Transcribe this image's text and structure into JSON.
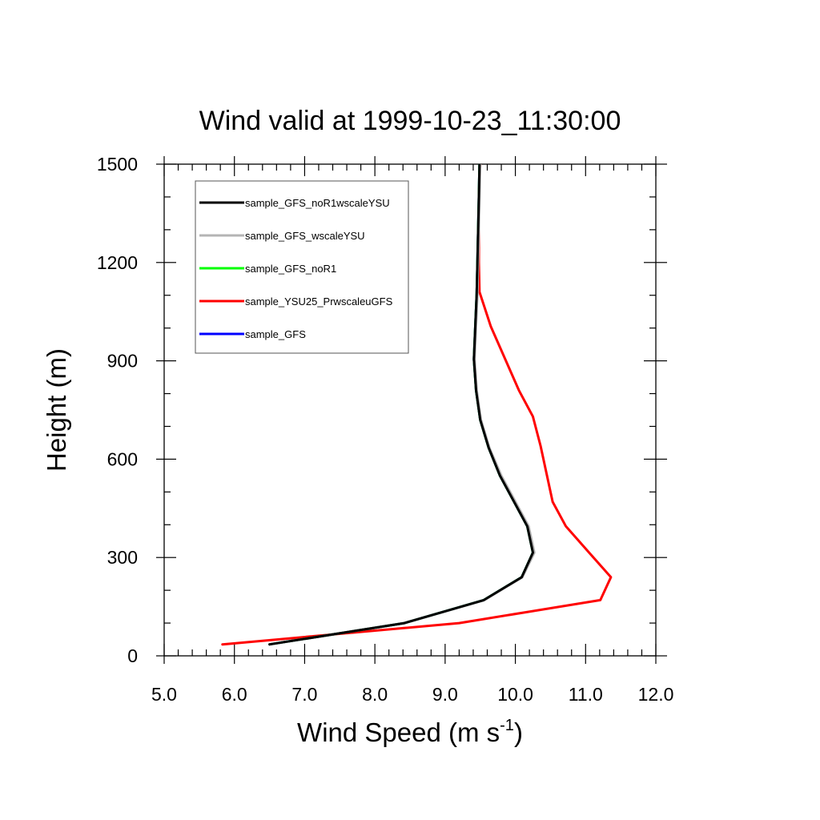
{
  "chart_data": {
    "type": "line",
    "title": "Wind valid at 1999-10-23_11:30:00",
    "xlabel": "Wind Speed (m s",
    "xlabel_superscript": "-1",
    "xlabel_suffix": ")",
    "ylabel": "Height (m)",
    "xlim": [
      5.0,
      12.0
    ],
    "ylim": [
      0,
      1500
    ],
    "xticks": [
      "5.0",
      "6.0",
      "7.0",
      "8.0",
      "9.0",
      "10.0",
      "11.0",
      "12.0"
    ],
    "yticks": [
      "0",
      "300",
      "600",
      "900",
      "1200",
      "1500"
    ],
    "grid": false,
    "legend_position": "top-left",
    "series": [
      {
        "name": "sample_GFS",
        "color": "#0000ff",
        "x": [
          6.5,
          8.42,
          9.55,
          10.09,
          10.25,
          10.17,
          9.78,
          9.62,
          9.5,
          9.44,
          9.41,
          9.43,
          9.45,
          9.46,
          9.47,
          9.48,
          9.49
        ],
        "y": [
          35,
          100,
          170,
          240,
          315,
          395,
          550,
          635,
          720,
          810,
          905,
          1010,
          1105,
          1200,
          1300,
          1400,
          1500
        ]
      },
      {
        "name": "sample_YSU25_PrwscaleuGFS",
        "color": "#ff0000",
        "x": [
          5.83,
          9.2,
          11.21,
          11.36,
          11.05,
          10.72,
          10.53,
          10.36,
          10.25,
          10.05,
          9.65,
          9.49,
          9.48,
          9.48,
          9.48,
          9.49,
          9.5
        ],
        "y": [
          35,
          100,
          170,
          240,
          315,
          395,
          470,
          640,
          730,
          810,
          1005,
          1110,
          1200,
          1300,
          1400,
          1450,
          1500
        ]
      },
      {
        "name": "sample_GFS_noR1",
        "color": "#00ff00",
        "x": [
          6.5,
          8.42,
          9.55,
          10.09,
          10.25,
          10.17,
          9.78,
          9.62,
          9.5,
          9.44,
          9.41,
          9.43,
          9.45,
          9.46,
          9.47,
          9.48,
          9.49
        ],
        "y": [
          35,
          100,
          170,
          240,
          315,
          395,
          550,
          635,
          720,
          810,
          905,
          1010,
          1105,
          1200,
          1300,
          1400,
          1500
        ]
      },
      {
        "name": "sample_GFS_wscaleYSU",
        "color": "#b4b4b4",
        "x": [
          6.5,
          8.42,
          9.56,
          10.1,
          10.27,
          10.19,
          9.8,
          9.63,
          9.51,
          9.45,
          9.42,
          9.44,
          9.46,
          9.47,
          9.48,
          9.49,
          9.5
        ],
        "y": [
          35,
          100,
          170,
          240,
          315,
          395,
          550,
          635,
          720,
          810,
          905,
          1010,
          1105,
          1200,
          1300,
          1400,
          1500
        ]
      },
      {
        "name": "sample_GFS_noR1wscaleYSU",
        "color": "#000000",
        "x": [
          6.5,
          8.42,
          9.55,
          10.09,
          10.25,
          10.17,
          9.78,
          9.62,
          9.5,
          9.44,
          9.41,
          9.43,
          9.45,
          9.46,
          9.47,
          9.48,
          9.49
        ],
        "y": [
          35,
          100,
          170,
          240,
          315,
          395,
          550,
          635,
          720,
          810,
          905,
          1010,
          1105,
          1200,
          1300,
          1400,
          1500
        ]
      }
    ],
    "legend": [
      {
        "name": "sample_GFS_noR1wscaleYSU",
        "color": "#000000"
      },
      {
        "name": "sample_GFS_wscaleYSU",
        "color": "#b4b4b4"
      },
      {
        "name": "sample_GFS_noR1",
        "color": "#00ff00"
      },
      {
        "name": "sample_YSU25_PrwscaleuGFS",
        "color": "#ff0000"
      },
      {
        "name": "sample_GFS",
        "color": "#0000ff"
      }
    ]
  }
}
